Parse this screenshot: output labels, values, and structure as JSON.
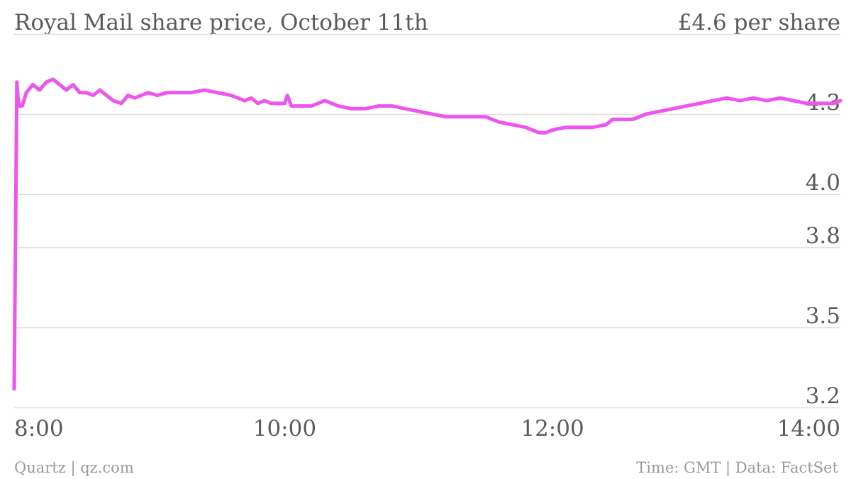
{
  "header": {
    "title": "Royal Mail share price, October 11th",
    "unit_label": "£4.6 per share"
  },
  "footer": {
    "left": "Quartz | qz.com",
    "right": "Time: GMT | Data: FactSet"
  },
  "colors": {
    "series": "#ee55ee",
    "grid": "#dedede"
  },
  "chart_data": {
    "type": "line",
    "x_label": "",
    "y_label": "",
    "x_ticks": [
      "8:00",
      "10:00",
      "12:00",
      "14:00"
    ],
    "x_tick_values": [
      8,
      10,
      12,
      14
    ],
    "y_ticks": [
      "3.2",
      "3.5",
      "3.8",
      "4.0",
      "4.3"
    ],
    "y_tick_values": [
      3.2,
      3.5,
      3.8,
      4.0,
      4.3
    ],
    "xlim": [
      7.98,
      14.15
    ],
    "ylim": [
      3.2,
      4.6
    ],
    "grid": true,
    "series": [
      {
        "name": "",
        "color": "#ee55ee",
        "x": [
          7.98,
          8.0,
          8.01,
          8.02,
          8.04,
          8.07,
          8.12,
          8.17,
          8.22,
          8.27,
          8.32,
          8.37,
          8.42,
          8.47,
          8.52,
          8.57,
          8.62,
          8.67,
          8.72,
          8.78,
          8.83,
          8.88,
          8.93,
          8.98,
          9.05,
          9.12,
          9.2,
          9.3,
          9.4,
          9.5,
          9.6,
          9.7,
          9.75,
          9.8,
          9.85,
          9.9,
          9.95,
          10.0,
          10.02,
          10.05,
          10.1,
          10.2,
          10.3,
          10.4,
          10.5,
          10.6,
          10.7,
          10.8,
          10.9,
          11.0,
          11.1,
          11.2,
          11.3,
          11.4,
          11.5,
          11.6,
          11.7,
          11.8,
          11.85,
          11.9,
          11.95,
          12.0,
          12.1,
          12.2,
          12.3,
          12.4,
          12.45,
          12.5,
          12.6,
          12.7,
          12.8,
          12.9,
          13.0,
          13.1,
          13.2,
          13.3,
          13.4,
          13.5,
          13.6,
          13.7,
          13.8,
          13.9,
          14.0,
          14.1,
          14.15
        ],
        "y": [
          3.27,
          4.42,
          4.35,
          4.33,
          4.33,
          4.38,
          4.41,
          4.39,
          4.42,
          4.43,
          4.41,
          4.39,
          4.41,
          4.38,
          4.38,
          4.37,
          4.39,
          4.37,
          4.35,
          4.34,
          4.37,
          4.36,
          4.37,
          4.38,
          4.37,
          4.38,
          4.38,
          4.38,
          4.39,
          4.38,
          4.37,
          4.35,
          4.36,
          4.34,
          4.35,
          4.34,
          4.34,
          4.34,
          4.37,
          4.33,
          4.33,
          4.33,
          4.35,
          4.33,
          4.32,
          4.32,
          4.33,
          4.33,
          4.32,
          4.31,
          4.3,
          4.29,
          4.29,
          4.29,
          4.29,
          4.27,
          4.26,
          4.25,
          4.24,
          4.23,
          4.23,
          4.24,
          4.25,
          4.25,
          4.25,
          4.26,
          4.28,
          4.28,
          4.28,
          4.3,
          4.31,
          4.32,
          4.33,
          4.34,
          4.35,
          4.36,
          4.35,
          4.36,
          4.35,
          4.36,
          4.35,
          4.34,
          4.34,
          4.34,
          4.35
        ]
      }
    ]
  }
}
